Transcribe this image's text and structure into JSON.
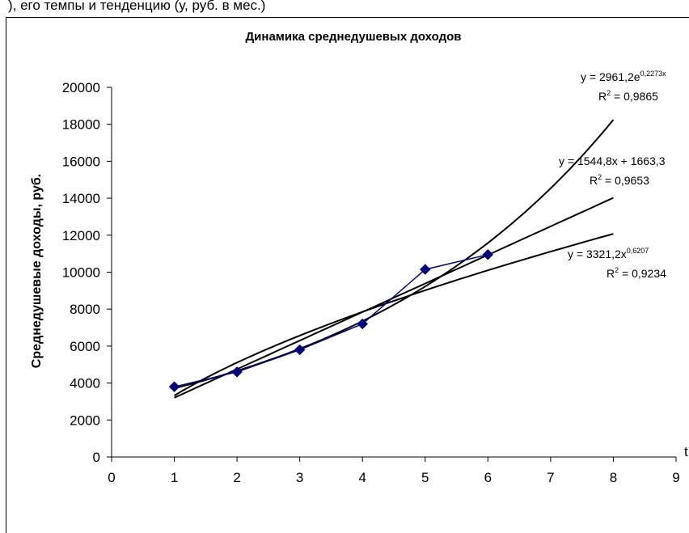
{
  "header_fragment": "), его темпы и тенденцию (у, руб. в мес.)",
  "chart_data": {
    "type": "scatter",
    "title": "Динамика среднедушевых доходов",
    "ylabel": "Среднедушевые доходы, руб.",
    "xlabel": "t",
    "xlim": [
      0,
      9
    ],
    "ylim": [
      0,
      20000
    ],
    "x_ticks": [
      "0",
      "1",
      "2",
      "3",
      "4",
      "5",
      "6",
      "7",
      "8",
      "9"
    ],
    "y_ticks": [
      "0",
      "2000",
      "4000",
      "6000",
      "8000",
      "10000",
      "12000",
      "14000",
      "16000",
      "18000",
      "20000"
    ],
    "grid": false,
    "legend": "none",
    "series": [
      {
        "x": [
          1,
          2,
          3,
          4,
          5,
          6
        ],
        "y": [
          3800,
          4600,
          5800,
          7200,
          10150,
          10950
        ],
        "color": "#000080",
        "marker": "diamond"
      }
    ],
    "trendlines": [
      {
        "kind": "exponential",
        "a": 2961.2,
        "b": 0.2273,
        "x_range": [
          1,
          8
        ],
        "color": "#000000",
        "equation": {
          "base": "y = 2961,2e",
          "sup": "0,2273x"
        },
        "r2": {
          "base": "R",
          "sup": "2",
          "rest": " = 0,9865"
        }
      },
      {
        "kind": "linear",
        "a": 1544.8,
        "b": 1663.3,
        "x_range": [
          1,
          8
        ],
        "color": "#000000",
        "equation": {
          "base": "y = 1544,8x + 1663,3",
          "sup": ""
        },
        "r2": {
          "base": "R",
          "sup": "2",
          "rest": " = 0,9653"
        }
      },
      {
        "kind": "power",
        "a": 3321.2,
        "b": 0.6207,
        "x_range": [
          1,
          8
        ],
        "color": "#000000",
        "equation": {
          "base": "y = 3321,2x",
          "sup": "0,6207"
        },
        "r2": {
          "base": "R",
          "sup": "2",
          "rest": " = 0,9234"
        }
      }
    ]
  }
}
